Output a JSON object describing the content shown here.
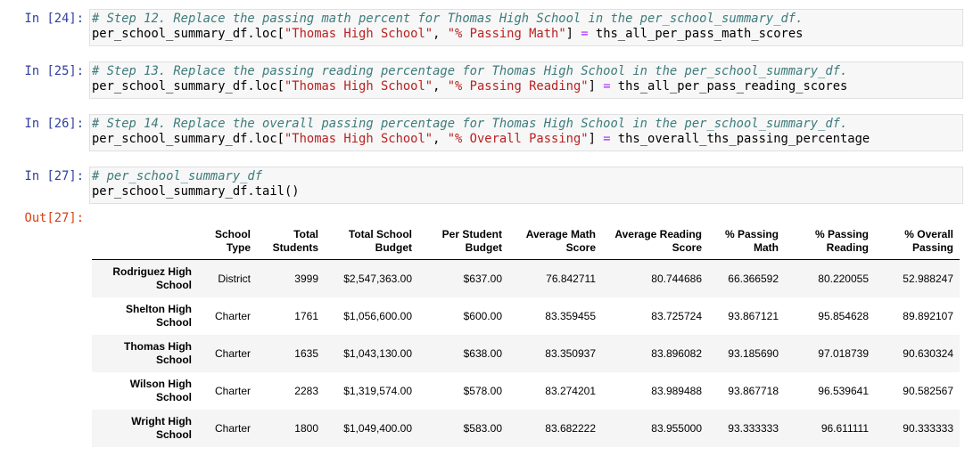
{
  "cells": [
    {
      "prompt": "In [24]:",
      "lines": [
        [
          {
            "text": "# Step 12. Replace the passing math percent for Thomas High School in the per_school_summary_df.",
            "color": "#3D7B7B",
            "italic": true
          }
        ],
        [
          {
            "text": "per_school_summary_df.loc[",
            "color": "#000000"
          },
          {
            "text": "\"Thomas High School\"",
            "color": "#BA2121"
          },
          {
            "text": ", ",
            "color": "#000000"
          },
          {
            "text": "\"% Passing Math\"",
            "color": "#BA2121"
          },
          {
            "text": "] ",
            "color": "#000000"
          },
          {
            "text": "=",
            "color": "#AA22FF"
          },
          {
            "text": " ths_all_per_pass_math_scores",
            "color": "#000000"
          }
        ]
      ]
    },
    {
      "prompt": "In [25]:",
      "lines": [
        [
          {
            "text": "# Step 13. Replace the passing reading percentage for Thomas High School in the per_school_summary_df.",
            "color": "#3D7B7B",
            "italic": true
          }
        ],
        [
          {
            "text": "per_school_summary_df.loc[",
            "color": "#000000"
          },
          {
            "text": "\"Thomas High School\"",
            "color": "#BA2121"
          },
          {
            "text": ", ",
            "color": "#000000"
          },
          {
            "text": "\"% Passing Reading\"",
            "color": "#BA2121"
          },
          {
            "text": "] ",
            "color": "#000000"
          },
          {
            "text": "=",
            "color": "#AA22FF"
          },
          {
            "text": " ths_all_per_pass_reading_scores",
            "color": "#000000"
          }
        ]
      ]
    },
    {
      "prompt": "In [26]:",
      "lines": [
        [
          {
            "text": "# Step 14. Replace the overall passing percentage for Thomas High School in the per_school_summary_df.",
            "color": "#3D7B7B",
            "italic": true
          }
        ],
        [
          {
            "text": "per_school_summary_df.loc[",
            "color": "#000000"
          },
          {
            "text": "\"Thomas High School\"",
            "color": "#BA2121"
          },
          {
            "text": ", ",
            "color": "#000000"
          },
          {
            "text": "\"% Overall Passing\"",
            "color": "#BA2121"
          },
          {
            "text": "] ",
            "color": "#000000"
          },
          {
            "text": "=",
            "color": "#AA22FF"
          },
          {
            "text": " ths_overall_ths_passing_percentage",
            "color": "#000000"
          }
        ]
      ]
    },
    {
      "prompt": "In [27]:",
      "lines": [
        [
          {
            "text": "# per_school_summary_df",
            "color": "#3D7B7B",
            "italic": true
          }
        ],
        [
          {
            "text": "per_school_summary_df.tail()",
            "color": "#000000"
          }
        ]
      ]
    }
  ],
  "output": {
    "prompt": "Out[27]:",
    "table": {
      "columns": [
        [
          "School",
          "Type"
        ],
        [
          "Total",
          "Students"
        ],
        [
          "Total School",
          "Budget"
        ],
        [
          "Per Student",
          "Budget"
        ],
        [
          "Average Math",
          "Score"
        ],
        [
          "Average Reading",
          "Score"
        ],
        [
          "% Passing",
          "Math"
        ],
        [
          "% Passing",
          "Reading"
        ],
        [
          "% Overall",
          "Passing"
        ]
      ],
      "index": [
        [
          "Rodriguez High",
          "School"
        ],
        [
          "Shelton High",
          "School"
        ],
        [
          "Thomas High",
          "School"
        ],
        [
          "Wilson High",
          "School"
        ],
        [
          "Wright High",
          "School"
        ]
      ],
      "rows": [
        [
          "District",
          "3999",
          "$2,547,363.00",
          "$637.00",
          "76.842711",
          "80.744686",
          "66.366592",
          "80.220055",
          "52.988247"
        ],
        [
          "Charter",
          "1761",
          "$1,056,600.00",
          "$600.00",
          "83.359455",
          "83.725724",
          "93.867121",
          "95.854628",
          "89.892107"
        ],
        [
          "Charter",
          "1635",
          "$1,043,130.00",
          "$638.00",
          "83.350937",
          "83.896082",
          "93.185690",
          "97.018739",
          "90.630324"
        ],
        [
          "Charter",
          "2283",
          "$1,319,574.00",
          "$578.00",
          "83.274201",
          "83.989488",
          "93.867718",
          "96.539641",
          "90.582567"
        ],
        [
          "Charter",
          "1800",
          "$1,049,400.00",
          "$583.00",
          "83.682222",
          "83.955000",
          "93.333333",
          "96.611111",
          "90.333333"
        ]
      ]
    }
  }
}
